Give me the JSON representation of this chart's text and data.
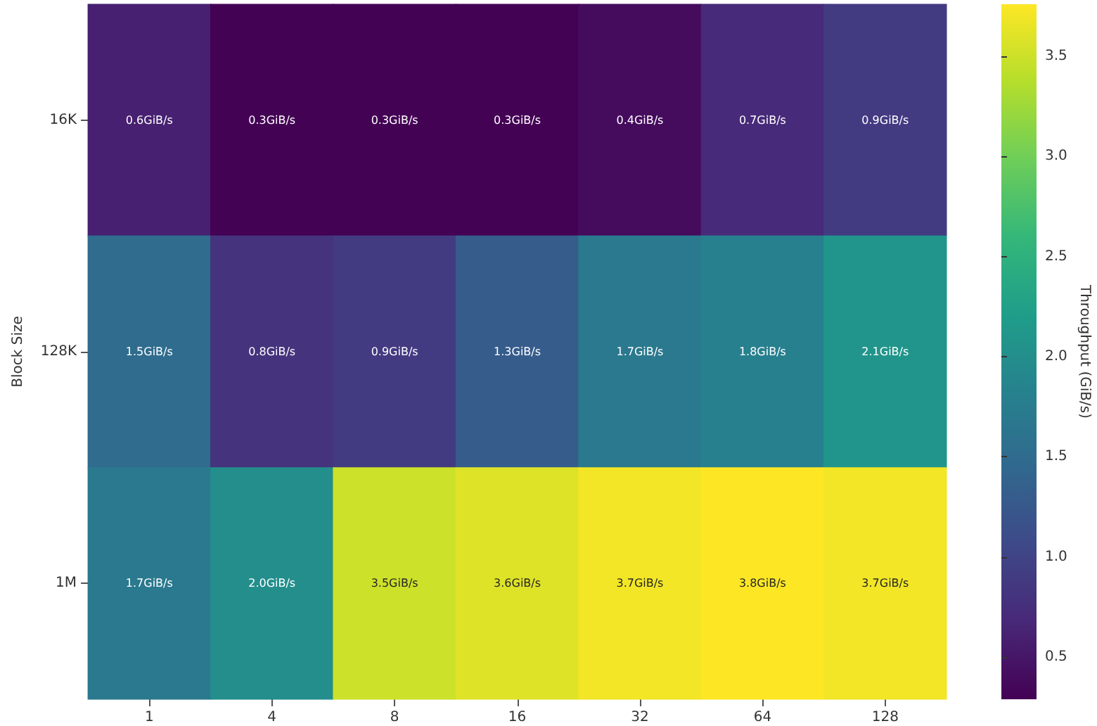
{
  "chart_data": {
    "type": "heatmap",
    "ylabel": "Block Size",
    "clabel": "Throughput (GiB/s)",
    "categories": [
      "1",
      "4",
      "8",
      "16",
      "32",
      "64",
      "128"
    ],
    "y_categories": [
      "16K",
      "128K",
      "1M"
    ],
    "cells": [
      [
        0.6,
        0.3,
        0.3,
        0.3,
        0.4,
        0.7,
        0.9
      ],
      [
        1.5,
        0.8,
        0.9,
        1.3,
        1.7,
        1.8,
        2.1
      ],
      [
        1.7,
        2.0,
        3.5,
        3.6,
        3.7,
        3.8,
        3.7
      ]
    ],
    "cell_labels": [
      [
        "0.6GiB/s",
        "0.3GiB/s",
        "0.3GiB/s",
        "0.3GiB/s",
        "0.4GiB/s",
        "0.7GiB/s",
        "0.9GiB/s"
      ],
      [
        "1.5GiB/s",
        "0.8GiB/s",
        "0.9GiB/s",
        "1.3GiB/s",
        "1.7GiB/s",
        "1.8GiB/s",
        "2.1GiB/s"
      ],
      [
        "1.7GiB/s",
        "2.0GiB/s",
        "3.5GiB/s",
        "3.6GiB/s",
        "3.7GiB/s",
        "3.8GiB/s",
        "3.7GiB/s"
      ]
    ],
    "clim": [
      0.29,
      3.76
    ],
    "cticks": [
      0.5,
      {
        "value": 1,
        "label": "1.0"
      },
      1.5,
      {
        "value": 2,
        "label": "2.0"
      },
      2.5,
      {
        "value": 3,
        "label": "3.0"
      },
      3.5
    ]
  }
}
